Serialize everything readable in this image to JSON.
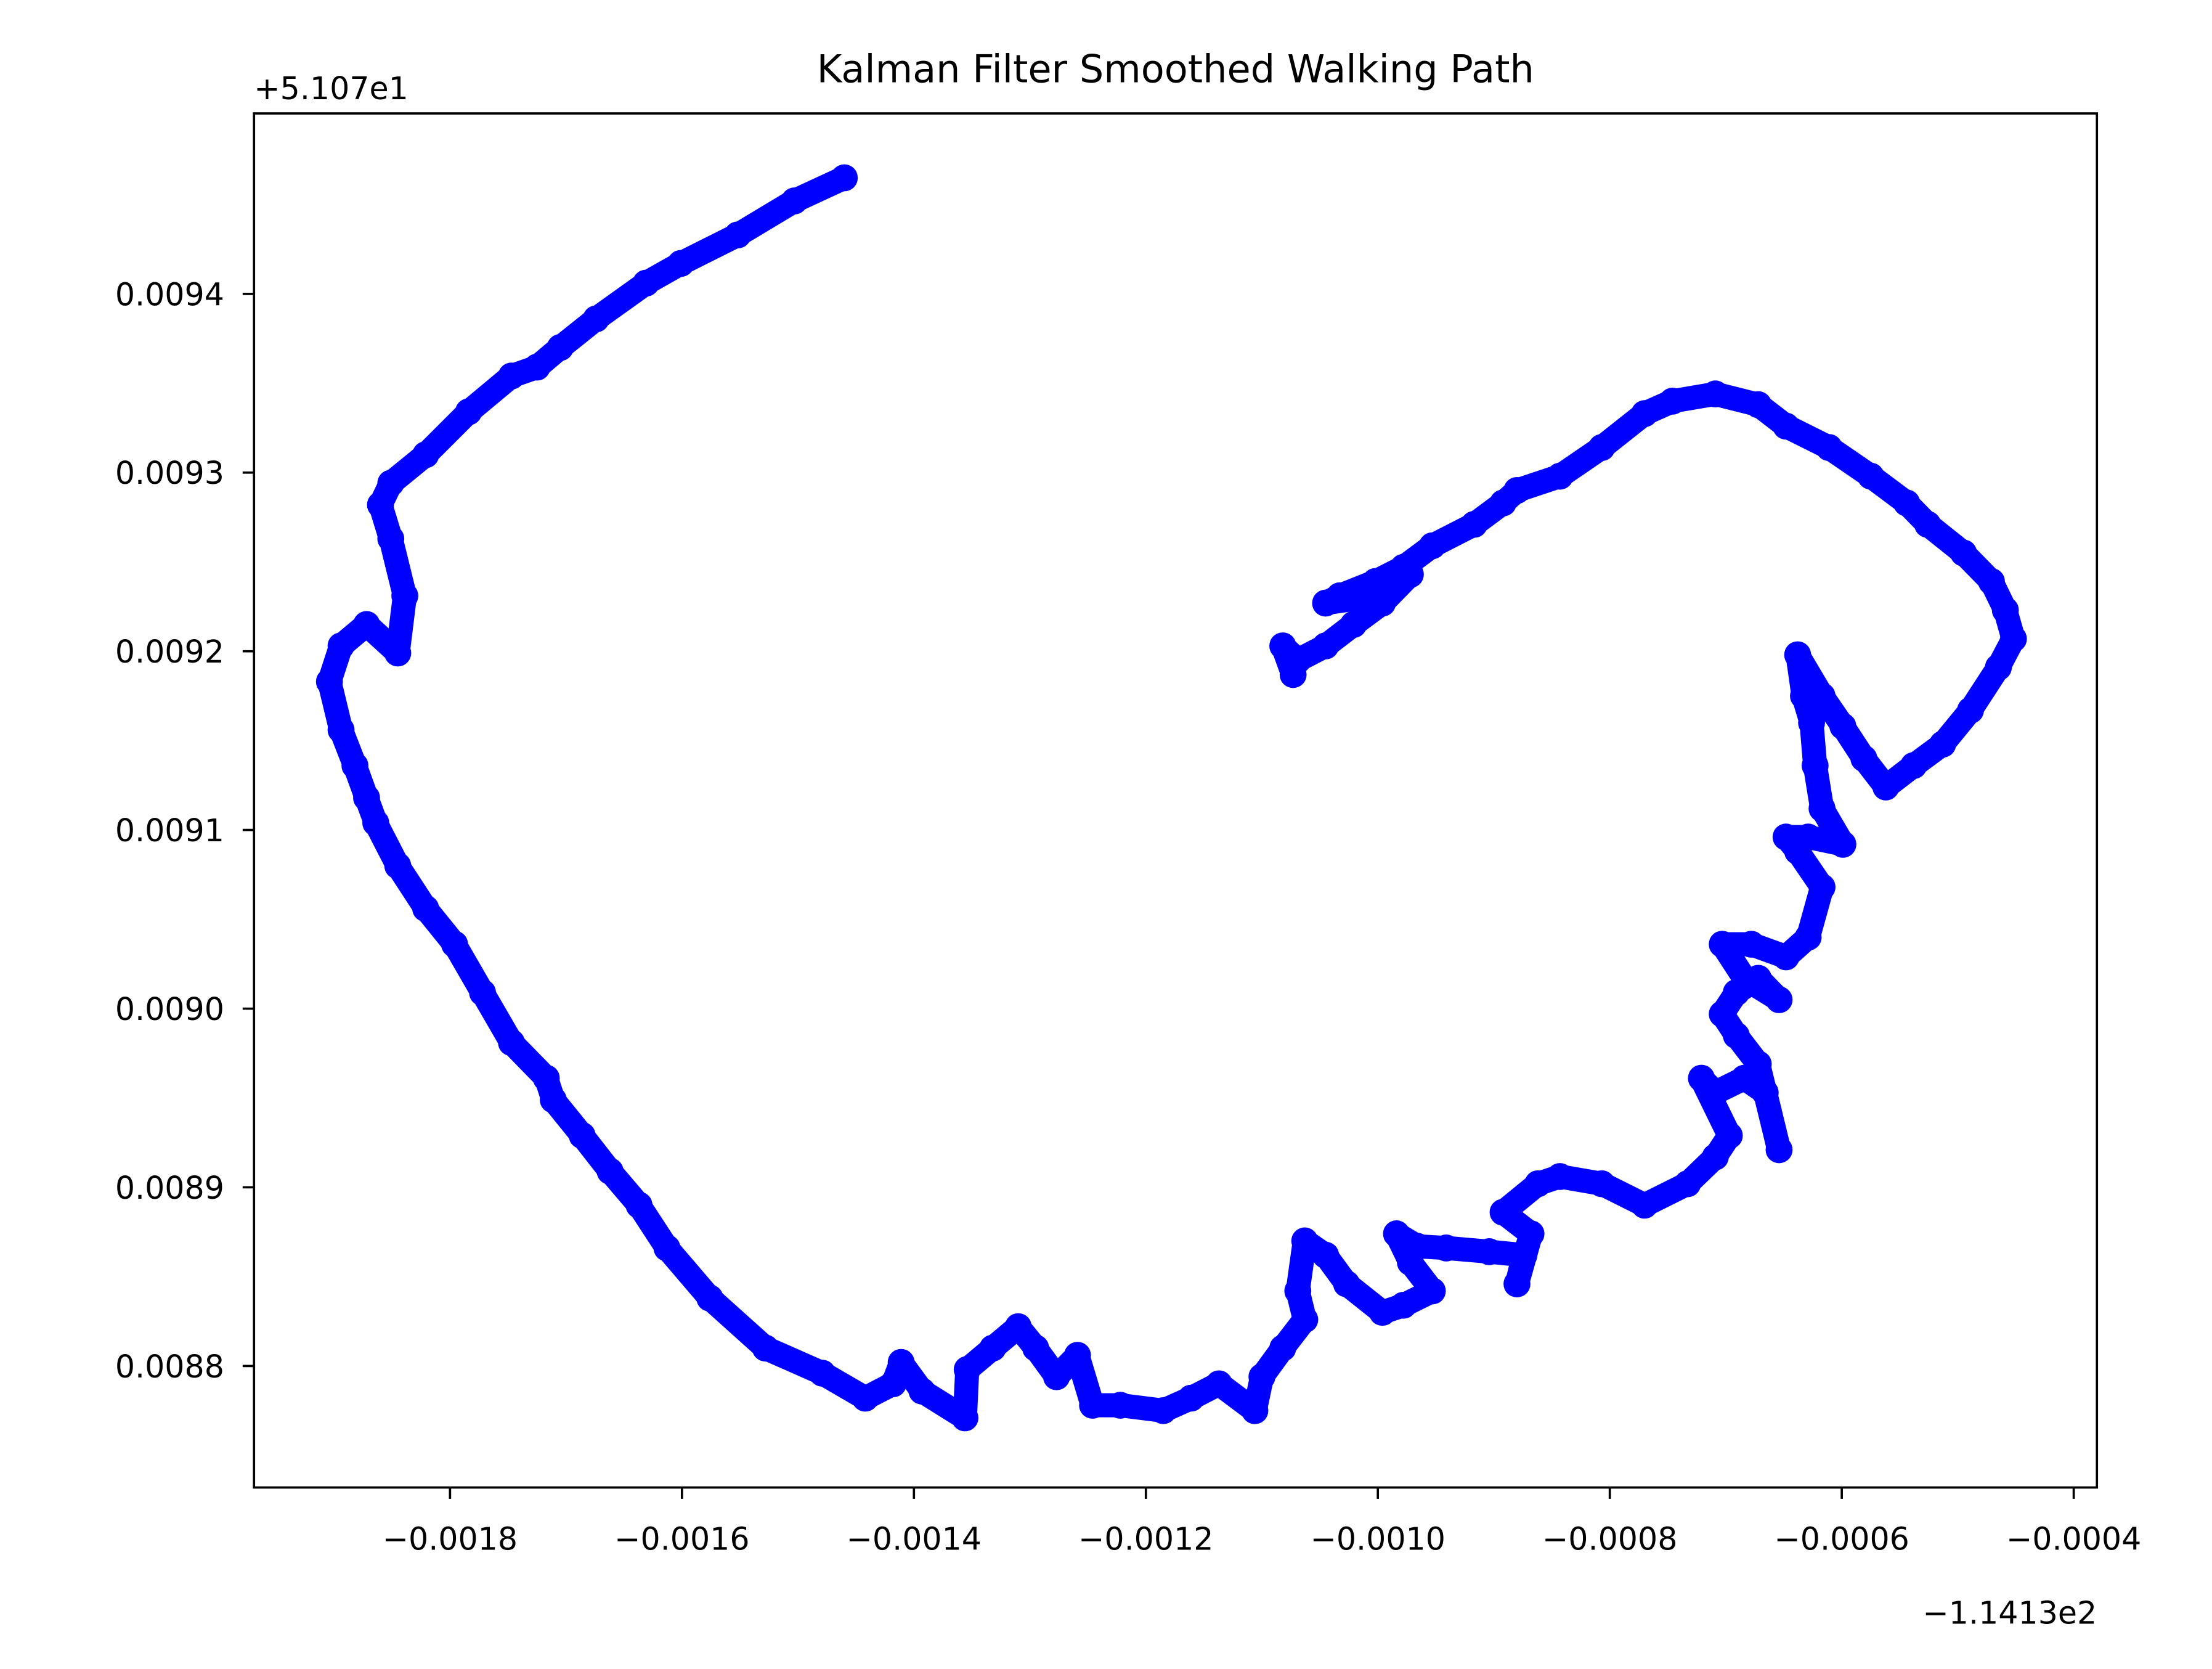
{
  "chart_data": {
    "type": "line",
    "title": "Kalman Filter Smoothed Walking Path",
    "xlabel": "",
    "ylabel": "",
    "x_offset_text": "−1.1413e2",
    "y_offset_text": "+5.107e1",
    "x_offset": -114.13,
    "y_offset": 51.07,
    "xlim": [
      -0.001969,
      -0.00038
    ],
    "ylim": [
      0.008732,
      0.009501
    ],
    "x_ticks": [
      -0.0018,
      -0.0016,
      -0.0014,
      -0.0012,
      -0.001,
      -0.0008,
      -0.0006,
      -0.0004
    ],
    "x_tick_labels": [
      "−0.0018",
      "−0.0016",
      "−0.0014",
      "−0.0012",
      "−0.0010",
      "−0.0008",
      "−0.0006",
      "−0.0004"
    ],
    "y_ticks": [
      0.0088,
      0.0089,
      0.009,
      0.0091,
      0.0092,
      0.0093,
      0.0094
    ],
    "y_tick_labels": [
      "0.0088",
      "0.0089",
      "0.0090",
      "0.0091",
      "0.0092",
      "0.0093",
      "0.0094"
    ],
    "grid": false,
    "legend": "none",
    "color": "#0000ff",
    "marker": "circle",
    "series": [
      {
        "x": [
          -0.00146,
          -0.001503,
          -0.001552,
          -0.001601,
          -0.001631,
          -0.001674,
          -0.001705,
          -0.001725,
          -0.001747,
          -0.001784,
          -0.001821,
          -0.001851,
          -0.00186,
          -0.001851,
          -0.001839,
          -0.001845,
          -0.001872,
          -0.001894,
          -0.001904,
          -0.001894,
          -0.001882,
          -0.001872,
          -0.001864,
          -0.001845,
          -0.001821,
          -0.001796,
          -0.001772,
          -0.001747,
          -0.001717,
          -0.001711,
          -0.001686,
          -0.001662,
          -0.001637,
          -0.001613,
          -0.001576,
          -0.001528,
          -0.001479,
          -0.001442,
          -0.001418,
          -0.001411,
          -0.001393,
          -0.001356,
          -0.001354,
          -0.001332,
          -0.00131,
          -0.001295,
          -0.001277,
          -0.001259,
          -0.001246,
          -0.001222,
          -0.001185,
          -0.001161,
          -0.001137,
          -0.001106,
          -0.0011,
          -0.001082,
          -0.001063,
          -0.001069,
          -0.001063,
          -0.001045,
          -0.001027,
          -0.000996,
          -0.000978,
          -0.000953,
          -0.000972,
          -0.000984,
          -0.000966,
          -0.000941,
          -0.000904,
          -0.000874,
          -0.00088,
          -0.000868,
          -0.000892,
          -0.000862,
          -0.000843,
          -0.000807,
          -0.00077,
          -0.000733,
          -0.000709,
          -0.000697,
          -0.000721,
          -0.000709,
          -0.000684,
          -0.000666,
          -0.000654,
          -0.000672,
          -0.000691,
          -0.000703,
          -0.000691,
          -0.000672,
          -0.000654,
          -0.000684,
          -0.000703,
          -0.000678,
          -0.000648,
          -0.000629,
          -0.000617,
          -0.000638,
          -0.000648,
          -0.000629,
          -0.000599,
          -0.000617,
          -0.000623,
          -0.000626,
          -0.000633,
          -0.000638,
          -0.000617,
          -0.000599,
          -0.000581,
          -0.000562,
          -0.000538,
          -0.000513,
          -0.000489,
          -0.000465,
          -0.000452,
          -0.000459,
          -0.000471,
          -0.000495,
          -0.000526,
          -0.000544,
          -0.000575,
          -0.000611,
          -0.000648,
          -0.000672,
          -0.000709,
          -0.000746,
          -0.00077,
          -0.000807,
          -0.000843,
          -0.00088,
          -0.000892,
          -0.000917,
          -0.000953,
          -0.000978,
          -0.001002,
          -0.001033,
          -0.001045,
          -0.001002,
          -0.000972,
          -0.000996,
          -0.001021,
          -0.001045,
          -0.001069,
          -0.001082,
          -0.001073
        ],
        "y": [
          0.009465,
          0.009452,
          0.009433,
          0.009417,
          0.009406,
          0.009386,
          0.00937,
          0.009359,
          0.009354,
          0.009334,
          0.00931,
          0.009294,
          0.009282,
          0.009263,
          0.009231,
          0.009199,
          0.009215,
          0.009203,
          0.009183,
          0.009156,
          0.009136,
          0.009118,
          0.009104,
          0.00908,
          0.009056,
          0.009036,
          0.009009,
          0.008981,
          0.008961,
          0.008949,
          0.008929,
          0.008909,
          0.00889,
          0.008866,
          0.008838,
          0.00881,
          0.008796,
          0.008782,
          0.00879,
          0.008802,
          0.008786,
          0.008771,
          0.008798,
          0.00881,
          0.008822,
          0.00881,
          0.008794,
          0.008806,
          0.008778,
          0.008778,
          0.008775,
          0.008782,
          0.00879,
          0.008775,
          0.008794,
          0.00881,
          0.008826,
          0.008842,
          0.00887,
          0.008862,
          0.008846,
          0.00883,
          0.008834,
          0.008842,
          0.008858,
          0.008874,
          0.008867,
          0.008866,
          0.008864,
          0.008862,
          0.008846,
          0.008874,
          0.008886,
          0.008902,
          0.008906,
          0.008902,
          0.00889,
          0.008902,
          0.008917,
          0.008929,
          0.008961,
          0.008953,
          0.008961,
          0.008953,
          0.008921,
          0.008969,
          0.008985,
          0.008997,
          0.009009,
          0.009017,
          0.009005,
          0.009017,
          0.009036,
          0.009036,
          0.009029,
          0.00904,
          0.009068,
          0.009088,
          0.009096,
          0.009096,
          0.009092,
          0.009112,
          0.009136,
          0.00916,
          0.009175,
          0.009198,
          0.009175,
          0.009158,
          0.00914,
          0.009124,
          0.009136,
          0.009148,
          0.009167,
          0.009191,
          0.009207,
          0.009223,
          0.009239,
          0.009255,
          0.009271,
          0.009283,
          0.009298,
          0.009314,
          0.009326,
          0.009338,
          0.009344,
          0.00934,
          0.009333,
          0.009314,
          0.009298,
          0.00929,
          0.009283,
          0.009271,
          0.009259,
          0.009247,
          0.009239,
          0.009231,
          0.009227,
          0.009231,
          0.009243,
          0.009227,
          0.009215,
          0.009203,
          0.009195,
          0.009203,
          0.009187
        ]
      }
    ]
  }
}
